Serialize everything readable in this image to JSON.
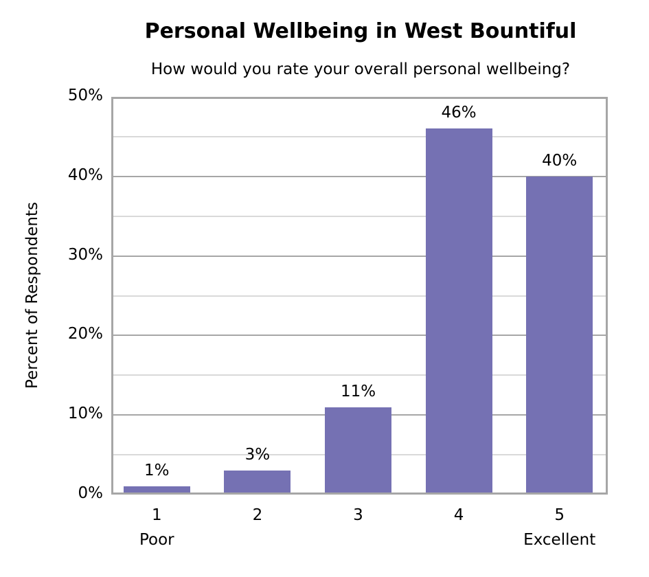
{
  "chart_data": {
    "type": "bar",
    "title": "Personal Wellbeing in West Bountiful",
    "subtitle": "How would you rate your overall personal wellbeing?",
    "xlabel": "",
    "ylabel": "Percent of Respondents",
    "categories": [
      "1",
      "2",
      "3",
      "4",
      "5"
    ],
    "category_sublabels": [
      "Poor",
      "",
      "",
      "",
      "Excellent"
    ],
    "values": [
      1,
      3,
      11,
      46,
      40
    ],
    "value_labels": [
      "1%",
      "3%",
      "11%",
      "46%",
      "40%"
    ],
    "ylim": [
      0,
      50
    ],
    "yticks": [
      "0%",
      "10%",
      "20%",
      "30%",
      "40%",
      "50%"
    ],
    "grid": true,
    "bar_color": "#7571b3",
    "legend": null
  }
}
